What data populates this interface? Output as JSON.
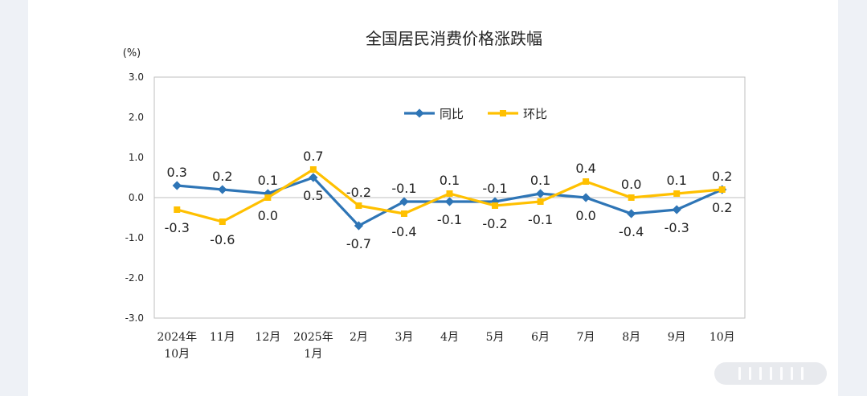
{
  "chart_data": {
    "type": "line",
    "title": "全国居民消费价格涨跌幅",
    "ylabel": "(%)",
    "ylim": [
      -3.0,
      3.0
    ],
    "yticks": [
      "3.0",
      "2.0",
      "1.0",
      "0.0",
      "-1.0",
      "-2.0",
      "-3.0"
    ],
    "ytick_values": [
      3,
      2,
      1,
      0,
      -1,
      -2,
      -3
    ],
    "categories": [
      [
        "2024年",
        "10月"
      ],
      [
        "11月"
      ],
      [
        "12月"
      ],
      [
        "2025年",
        "1月"
      ],
      [
        "2月"
      ],
      [
        "3月"
      ],
      [
        "4月"
      ],
      [
        "5月"
      ],
      [
        "6月"
      ],
      [
        "7月"
      ],
      [
        "8月"
      ],
      [
        "9月"
      ],
      [
        "10月"
      ]
    ],
    "legend_position": "top-center",
    "grid": false,
    "series": [
      {
        "name": "同比",
        "color": "#2e75b6",
        "values": [
          0.3,
          0.2,
          0.1,
          0.5,
          -0.7,
          -0.1,
          -0.1,
          -0.1,
          0.1,
          0.0,
          -0.4,
          -0.3,
          0.2
        ],
        "labels": [
          "0.3",
          "0.2",
          "0.1",
          "0.5",
          "-0.7",
          "-0.1",
          "-0.1",
          "-0.1",
          "0.1",
          "0.0",
          "-0.4",
          "-0.3",
          "0.2"
        ],
        "label_pos": [
          "above",
          "above",
          "above",
          "below",
          "below",
          "above",
          "below",
          "above",
          "above",
          "below",
          "below",
          "below",
          "below"
        ]
      },
      {
        "name": "环比",
        "color": "#ffc000",
        "values": [
          -0.3,
          -0.6,
          0.0,
          0.7,
          -0.2,
          -0.4,
          0.1,
          -0.2,
          -0.1,
          0.4,
          0.0,
          0.1,
          0.2
        ],
        "labels": [
          "-0.3",
          "-0.6",
          "0.0",
          "0.7",
          "-0.2",
          "-0.4",
          "0.1",
          "-0.2",
          "-0.1",
          "0.4",
          "0.0",
          "0.1",
          "0.2"
        ],
        "label_pos": [
          "below",
          "below",
          "below",
          "above",
          "above",
          "below",
          "above",
          "below",
          "below",
          "above",
          "above",
          "above",
          "above"
        ]
      }
    ]
  }
}
